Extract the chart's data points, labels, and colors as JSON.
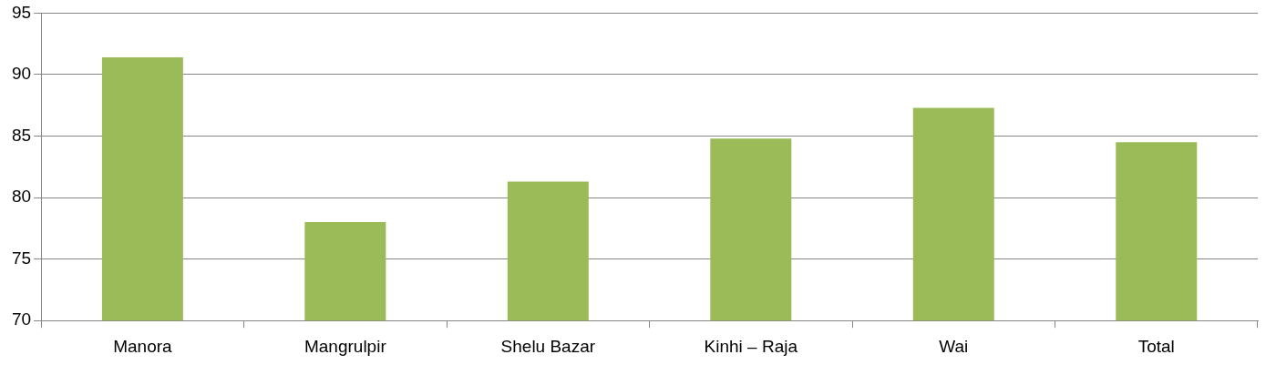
{
  "chart_data": {
    "type": "bar",
    "categories": [
      "Manora",
      "Mangrulpir",
      "Shelu Bazar",
      "Kinhi – Raja",
      "Wai",
      "Total"
    ],
    "values": [
      91.4,
      78.0,
      81.3,
      84.8,
      87.3,
      84.5
    ],
    "color": "#9bbb59",
    "ylim": [
      70,
      95
    ],
    "yticks": [
      70,
      75,
      80,
      85,
      90,
      95
    ],
    "grid": "y"
  }
}
